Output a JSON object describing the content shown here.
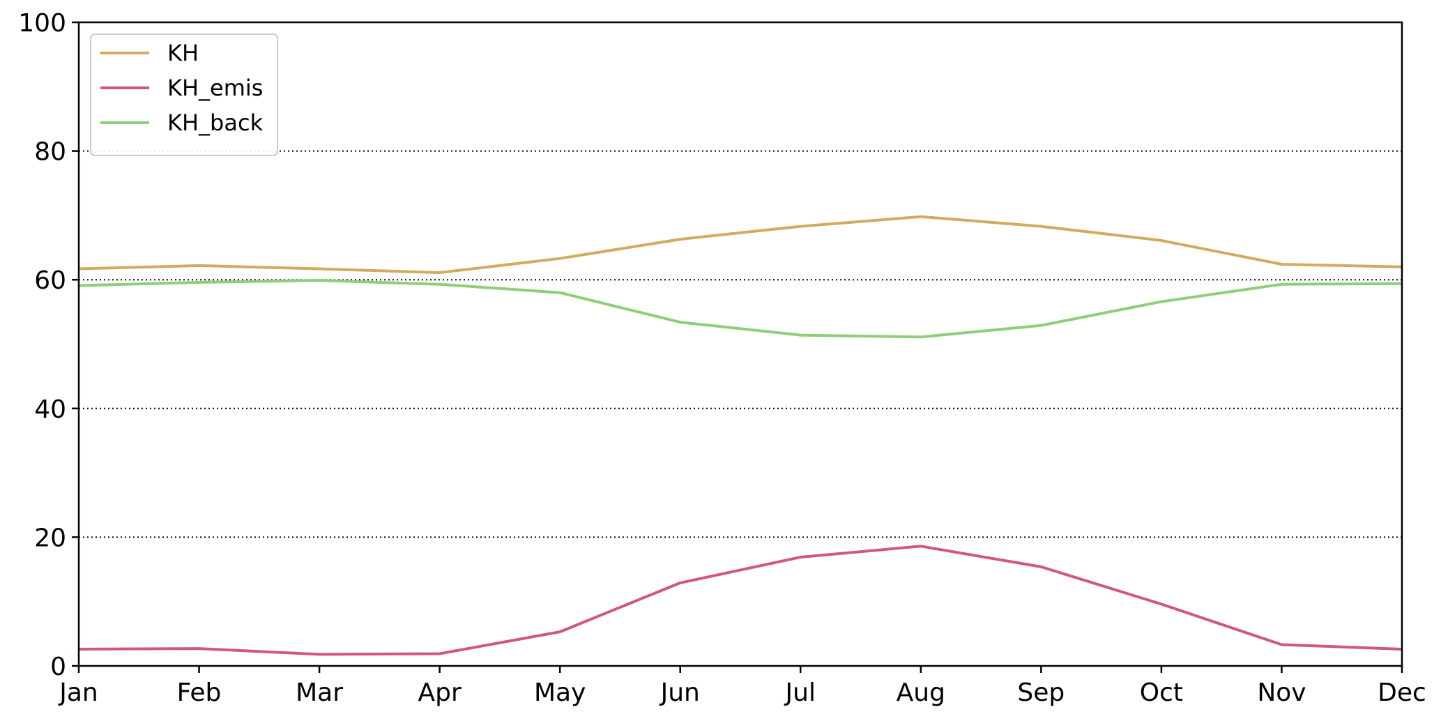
{
  "chart_data": {
    "type": "line",
    "categories": [
      "Jan",
      "Feb",
      "Mar",
      "Apr",
      "May",
      "Jun",
      "Jul",
      "Aug",
      "Sep",
      "Oct",
      "Nov",
      "Dec"
    ],
    "ylim": [
      0,
      100
    ],
    "yticks": [
      0,
      20,
      40,
      60,
      80,
      100
    ],
    "ytick_labels": [
      "0",
      "20",
      "40",
      "60",
      "80",
      "100"
    ],
    "grid": "horizontal dotted",
    "legend_position": "top-left",
    "series": [
      {
        "name": "KH",
        "color": "#d4aa5f",
        "values": [
          61.7,
          62.2,
          61.7,
          61.1,
          63.3,
          66.3,
          68.3,
          69.8,
          68.3,
          66.1,
          62.4,
          62.0
        ]
      },
      {
        "name": "KH_emis",
        "color": "#d35682",
        "values": [
          2.6,
          2.7,
          1.8,
          1.9,
          5.3,
          12.9,
          16.9,
          18.6,
          15.4,
          9.6,
          3.3,
          2.6
        ]
      },
      {
        "name": "KH_back",
        "color": "#8fce78",
        "values": [
          59.1,
          59.6,
          59.9,
          59.3,
          58.0,
          53.4,
          51.4,
          51.1,
          52.9,
          56.6,
          59.3,
          59.4
        ]
      }
    ],
    "title": "",
    "xlabel": "",
    "ylabel": ""
  }
}
